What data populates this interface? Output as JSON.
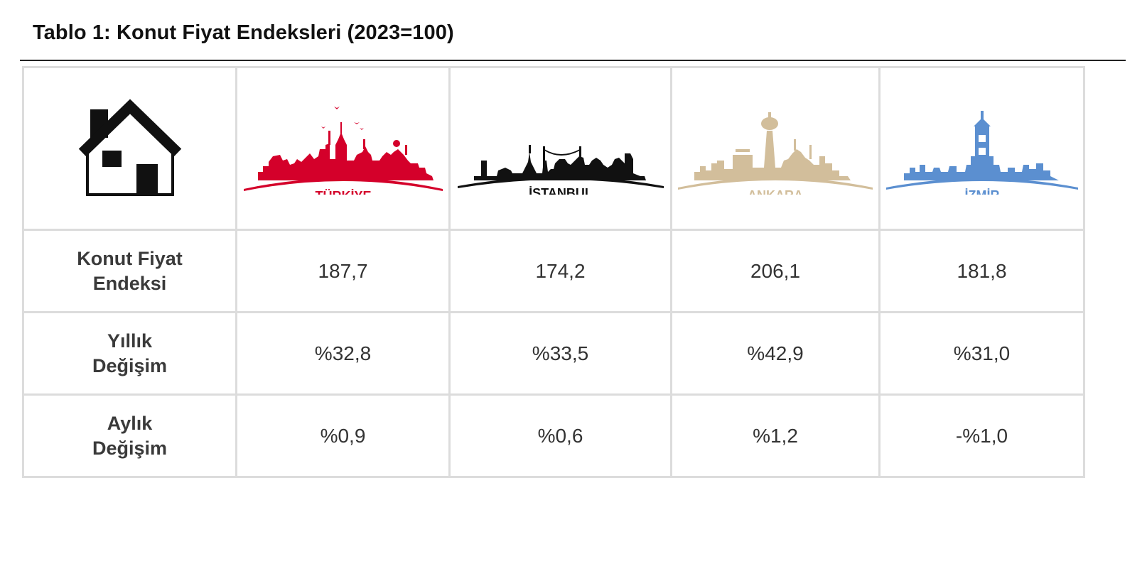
{
  "title": "Tablo 1: Konut Fiyat Endeksleri (2023=100)",
  "icon": "house-icon",
  "cities": [
    {
      "name": "TÜRKİYE",
      "color": "#d4002a",
      "icon": "turkiye-skyline-icon"
    },
    {
      "name": "İSTANBUL",
      "color": "#111111",
      "icon": "istanbul-skyline-icon"
    },
    {
      "name": "ANKARA",
      "color": "#d2be9b",
      "icon": "ankara-skyline-icon"
    },
    {
      "name": "İZMİR",
      "color": "#5b8fd0",
      "icon": "izmir-skyline-icon"
    }
  ],
  "rows": [
    {
      "label_line1": "Konut Fiyat",
      "label_line2": "Endeksi",
      "values": [
        "187,7",
        "174,2",
        "206,1",
        "181,8"
      ]
    },
    {
      "label_line1": "Yıllık",
      "label_line2": "Değişim",
      "values": [
        "%32,8",
        "%33,5",
        "%42,9",
        "%31,0"
      ]
    },
    {
      "label_line1": "Aylık",
      "label_line2": "Değişim",
      "values": [
        "%0,9",
        "%0,6",
        "%1,2",
        "-%1,0"
      ]
    }
  ]
}
